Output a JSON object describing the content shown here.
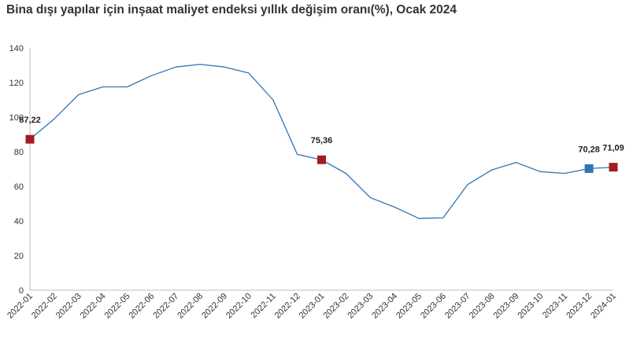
{
  "chart_data": {
    "type": "line",
    "title": "Bina dışı yapılar için inşaat maliyet endeksi yıllık değişim oranı(%), Ocak 2024",
    "xlabel": "",
    "ylabel": "",
    "ylim": [
      0,
      140
    ],
    "yticks": [
      0,
      20,
      40,
      60,
      80,
      100,
      120,
      140
    ],
    "grid": false,
    "legend": "none",
    "x": [
      "2022-01",
      "2022-02",
      "2022-03",
      "2022-04",
      "2022-05",
      "2022-06",
      "2022-07",
      "2022-08",
      "2022-09",
      "2022-10",
      "2022-11",
      "2022-12",
      "2023-01",
      "2023-02",
      "2023-03",
      "2023-04",
      "2023-05",
      "2023-06",
      "2023-07",
      "2023-08",
      "2023-09",
      "2023-10",
      "2023-11",
      "2023-12",
      "2024-01"
    ],
    "series": [
      {
        "values": [
          87.22,
          99,
          113,
          117.5,
          117.5,
          124,
          129,
          130.5,
          129,
          125.5,
          110,
          78.5,
          75.36,
          67.5,
          53.5,
          48,
          41.5,
          41.8,
          61,
          69.5,
          73.8,
          68.5,
          67.5,
          70.28,
          71.09
        ]
      }
    ],
    "line_color": "#2e75b6",
    "highlights": [
      {
        "index": 0,
        "label": "87,22",
        "color": "#a31c22"
      },
      {
        "index": 12,
        "label": "75,36",
        "color": "#a31c22"
      },
      {
        "index": 23,
        "label": "70,28",
        "color": "#2e75b6"
      },
      {
        "index": 24,
        "label": "71,09",
        "color": "#a31c22"
      }
    ]
  }
}
